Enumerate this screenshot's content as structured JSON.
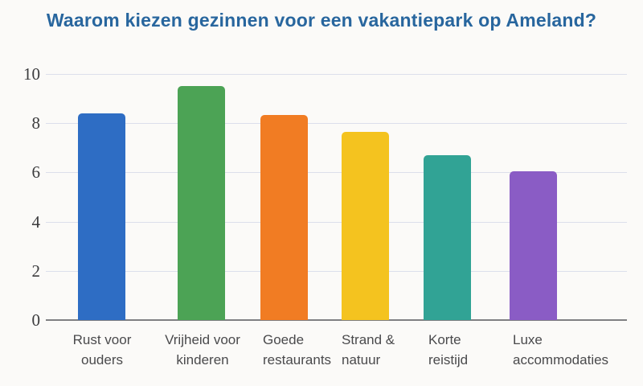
{
  "chart_data": {
    "type": "bar",
    "title": "Waarom kiezen gezinnen voor een vakantiepark op Ameland?",
    "categories": [
      "Rust voor ouders",
      "Vrijheid voor kinderen",
      "Goede restaurants",
      "Strand & natuur",
      "Korte reistijd",
      "Luxe accommodaties"
    ],
    "values": [
      8.4,
      9.5,
      8.35,
      7.65,
      6.7,
      6.05
    ],
    "colors": [
      "#2e6dc4",
      "#4ca355",
      "#f17c23",
      "#f4c31f",
      "#31a395",
      "#8a5cc5"
    ],
    "yticks": [
      "0",
      "2",
      "4",
      "6",
      "8",
      "10"
    ],
    "ylim": [
      0,
      10
    ],
    "xlabel": "",
    "ylabel": "",
    "grid": true,
    "legend": false,
    "title_color": "#28669e",
    "gridline_color": "#dcdfeb",
    "baseline_color": "#7f7f82",
    "tick_label_color": "#3b3b3d",
    "category_label_color": "#4a4a4c",
    "background_color": "#fbfaf8"
  }
}
